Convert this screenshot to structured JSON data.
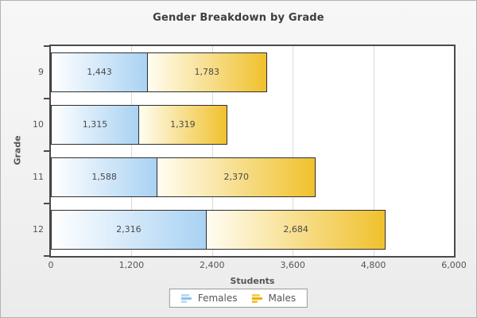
{
  "window": {
    "background": "#f1f1f1",
    "border_color": "#b2b2b2"
  },
  "chart_data": {
    "type": "bar",
    "orientation": "horizontal",
    "stacked": true,
    "title": "Gender Breakdown by Grade",
    "xlabel": "Students",
    "ylabel": "Grade",
    "categories": [
      "9",
      "10",
      "11",
      "12"
    ],
    "series": [
      {
        "name": "Females",
        "values": [
          1443,
          1315,
          1588,
          2316
        ],
        "labels": [
          "1,443",
          "1,315",
          "1,588",
          "2,316"
        ],
        "color_start": "#ffffff",
        "color_end": "#a9d2f3",
        "icon_colors": [
          "#b9dcf6",
          "#8fc0ea",
          "#bcdcf5"
        ]
      },
      {
        "name": "Males",
        "values": [
          1783,
          1319,
          2370,
          2684
        ],
        "labels": [
          "1,783",
          "1,319",
          "2,370",
          "2,684"
        ],
        "color_start": "#fffdf2",
        "color_end": "#f0c12d",
        "icon_colors": [
          "#f6d04f",
          "#e8af07",
          "#f0c531"
        ]
      }
    ],
    "xlim": [
      0,
      6000
    ],
    "xticks": [
      {
        "value": 0,
        "label": "0"
      },
      {
        "value": 1200,
        "label": "1,200"
      },
      {
        "value": 2400,
        "label": "2,400"
      },
      {
        "value": 3600,
        "label": "3,600"
      },
      {
        "value": 4800,
        "label": "4,800"
      },
      {
        "value": 6000,
        "label": "6,000"
      }
    ],
    "grid": "vertical",
    "legend_position": "bottom",
    "plot_background": "#ffffff",
    "axis_color": "#4a4a4a",
    "gridline_color": "#dadada"
  }
}
